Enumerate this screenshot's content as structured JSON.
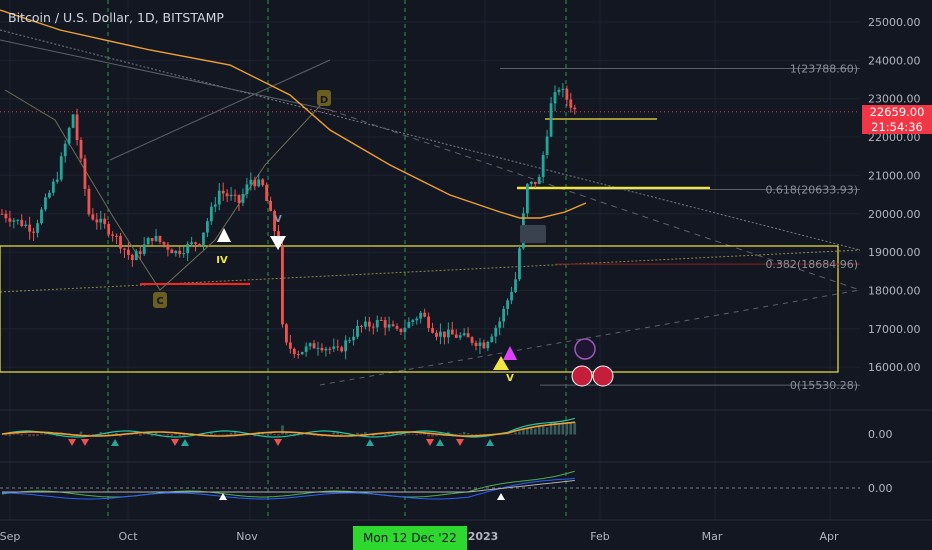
{
  "chart_title": "Bitcoin / U.S. Dollar, 1D, BITSTAMP",
  "last_price": "22659.00",
  "countdown": "21:54:36",
  "crosshair_date": "Mon 12 Dec '22",
  "colors": {
    "up": "#26a69a",
    "down": "#ef5350",
    "bg": "#131722",
    "accent": "#f23645",
    "yellow": "#f0e442",
    "orange": "#f0a030",
    "crosshair": "#2ed82e"
  },
  "fib_levels": [
    {
      "label": "1(23788.60)",
      "price": 23788.6
    },
    {
      "label": "0.618(20633.93)",
      "price": 20633.93
    },
    {
      "label": "0.382(18684.96)",
      "price": 18684.96
    },
    {
      "label": "0(15530.28)",
      "price": 15530.28
    }
  ],
  "wave_labels": [
    "D",
    "C",
    "IV",
    "V",
    "V"
  ],
  "oscillator_values": [
    "0.00",
    "0.00"
  ],
  "chart_data": {
    "type": "candlestick",
    "title": "Bitcoin / U.S. Dollar, 1D, BITSTAMP",
    "x_ticks": [
      "Sep",
      "Oct",
      "Nov",
      "2023",
      "Feb",
      "Mar",
      "Apr"
    ],
    "y_ticks": [
      16000,
      17000,
      18000,
      19000,
      20000,
      21000,
      22000,
      23000,
      24000,
      25000
    ],
    "ylim": [
      15300,
      25300
    ],
    "grid": true,
    "waypoints": [
      [
        0,
        20000
      ],
      [
        8,
        19600
      ],
      [
        14,
        21000
      ],
      [
        18,
        22600
      ],
      [
        22,
        20000
      ],
      [
        28,
        19500
      ],
      [
        33,
        18800
      ],
      [
        38,
        19400
      ],
      [
        44,
        19000
      ],
      [
        50,
        19300
      ],
      [
        55,
        20600
      ],
      [
        60,
        20300
      ],
      [
        63,
        20900
      ],
      [
        66,
        20700
      ],
      [
        70,
        19200
      ],
      [
        71,
        16600
      ],
      [
        75,
        16400
      ],
      [
        80,
        16600
      ],
      [
        85,
        16400
      ],
      [
        90,
        17000
      ],
      [
        96,
        17200
      ],
      [
        100,
        16900
      ],
      [
        106,
        17400
      ],
      [
        110,
        16900
      ],
      [
        116,
        16800
      ],
      [
        122,
        16600
      ],
      [
        126,
        17200
      ],
      [
        130,
        18300
      ],
      [
        133,
        20700
      ],
      [
        136,
        20900
      ],
      [
        139,
        22800
      ],
      [
        141,
        23300
      ],
      [
        143,
        23000
      ],
      [
        145,
        22700
      ]
    ]
  }
}
